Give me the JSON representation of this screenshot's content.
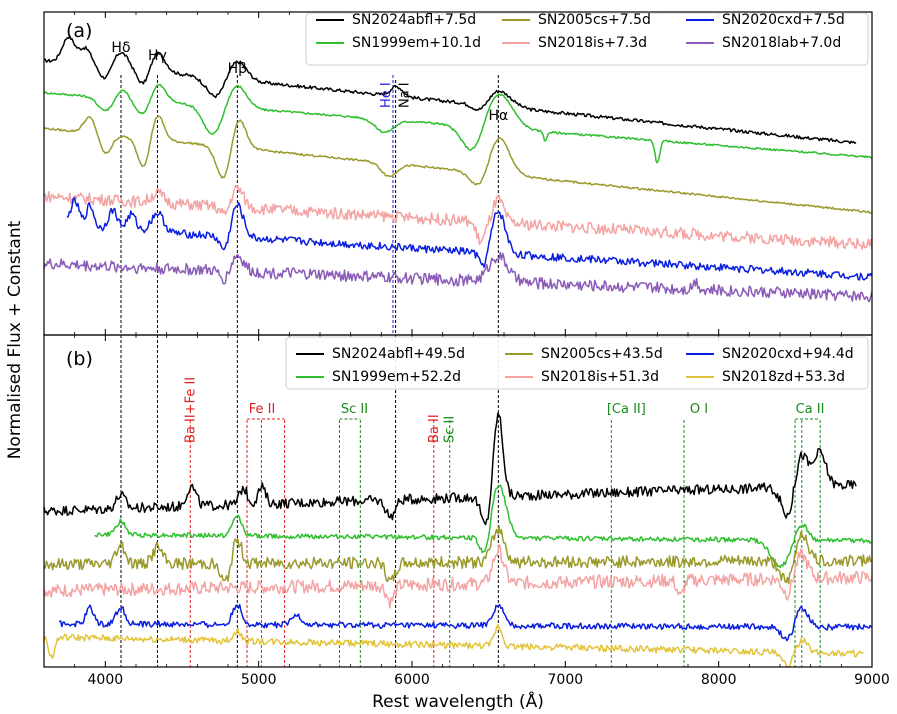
{
  "chart_data": {
    "type": "line",
    "xlabel": "Rest wavelength (Å)",
    "ylabel": "Normalised Flux + Constant",
    "xlim": [
      3600,
      9000
    ],
    "x_ticks": [
      4000,
      5000,
      6000,
      7000,
      8000,
      9000
    ],
    "x_tick_labels": [
      "4000",
      "5000",
      "6000",
      "7000",
      "8000",
      "9000"
    ],
    "panels": [
      {
        "label": "(a)",
        "ylim": [
          0,
          10
        ],
        "series": [
          {
            "name": "SN2024abfl+7.5d",
            "color": "#000000",
            "x_range": [
              3600,
              8900
            ],
            "level": 8.5,
            "slope": -2.6,
            "noise": 0.05,
            "features": [
              [
                3760,
                0.8,
                40
              ],
              [
                3870,
                0.5,
                40
              ],
              [
                4100,
                0.5,
                50
              ],
              [
                4340,
                0.6,
                50
              ],
              [
                4860,
                0.6,
                60
              ],
              [
                5900,
                0.3,
                40
              ],
              [
                6563,
                0.5,
                80
              ],
              [
                4000,
                -0.4,
                40
              ],
              [
                4250,
                -0.5,
                40
              ],
              [
                4720,
                -0.6,
                60
              ],
              [
                6450,
                -0.3,
                50
              ]
            ]
          },
          {
            "name": "SN1999em+10.1d",
            "color": "#2fbf2f",
            "x_range": [
              3600,
              9000
            ],
            "level": 7.5,
            "slope": -2.0,
            "noise": 0.03,
            "features": [
              [
                4110,
                0.3,
                40
              ],
              [
                4340,
                0.6,
                50
              ],
              [
                4860,
                0.7,
                60
              ],
              [
                6563,
                1.1,
                90
              ],
              [
                4000,
                -0.4,
                50
              ],
              [
                4250,
                -0.5,
                50
              ],
              [
                4700,
                -0.9,
                60
              ],
              [
                5820,
                -0.4,
                60
              ],
              [
                6400,
                -0.9,
                70
              ],
              [
                7600,
                -0.7,
                15
              ],
              [
                6870,
                -0.3,
                10
              ]
            ]
          },
          {
            "name": "SN2005cs+7.5d",
            "color": "#9a9a2c",
            "x_range": [
              3600,
              9000
            ],
            "level": 6.4,
            "slope": -2.6,
            "noise": 0.03,
            "features": [
              [
                3900,
                0.5,
                40
              ],
              [
                4340,
                0.8,
                40
              ],
              [
                4860,
                1.1,
                50
              ],
              [
                6563,
                1.2,
                70
              ],
              [
                4000,
                -0.6,
                40
              ],
              [
                4250,
                -0.9,
                40
              ],
              [
                4780,
                -1.2,
                50
              ],
              [
                5850,
                -0.4,
                50
              ],
              [
                6450,
                -0.6,
                60
              ]
            ]
          },
          {
            "name": "SN2018is+7.3d",
            "color": "#f4a3a3",
            "x_range": [
              3600,
              9000
            ],
            "level": 4.3,
            "slope": -1.5,
            "noise": 0.18,
            "features": [
              [
                4340,
                0.3,
                40
              ],
              [
                4860,
                0.6,
                40
              ],
              [
                6563,
                0.7,
                35
              ],
              [
                6450,
                -0.6,
                30
              ],
              [
                4780,
                -0.3,
                30
              ]
            ]
          },
          {
            "name": "SN2020cxd+7.5d",
            "color": "#0a1ee0",
            "x_range": [
              3750,
              9000
            ],
            "level": 3.4,
            "slope": -1.6,
            "noise": 0.12,
            "features": [
              [
                3800,
                0.8,
                30
              ],
              [
                3900,
                0.7,
                25
              ],
              [
                4050,
                0.6,
                30
              ],
              [
                4170,
                0.5,
                30
              ],
              [
                4340,
                0.6,
                40
              ],
              [
                4860,
                1.0,
                40
              ],
              [
                6563,
                1.3,
                45
              ],
              [
                4780,
                -0.5,
                30
              ],
              [
                6470,
                -0.5,
                30
              ]
            ]
          },
          {
            "name": "SN2018lab+7.0d",
            "color": "#8a5cb8",
            "x_range": [
              3600,
              9000
            ],
            "level": 2.2,
            "slope": -1.0,
            "noise": 0.18,
            "features": [
              [
                4860,
                0.5,
                40
              ],
              [
                6563,
                0.8,
                60
              ],
              [
                4780,
                -0.3,
                30
              ],
              [
                7850,
                0.25,
                20
              ]
            ]
          }
        ],
        "line_markers": [
          {
            "label": "Hδ",
            "x": 4102,
            "color": "#000000",
            "style": "dashed"
          },
          {
            "label": "Hγ",
            "x": 4340,
            "color": "#000000",
            "style": "dashed"
          },
          {
            "label": "Hβ",
            "x": 4861,
            "color": "#000000",
            "style": "dashed"
          },
          {
            "label": "He I",
            "x": 5876,
            "color": "#1a1ae6",
            "style": "dashed"
          },
          {
            "label": "Na I",
            "x": 5893,
            "color": "#000000",
            "style": "dashed"
          },
          {
            "label": "Hα",
            "x": 6563,
            "color": "#000000",
            "style": "dashed"
          }
        ],
        "legend": {
          "position": "top-right",
          "columns": 3
        }
      },
      {
        "label": "(b)",
        "ylim": [
          0,
          10
        ],
        "series": [
          {
            "name": "SN2024abfl+49.5d",
            "color": "#000000",
            "x_range": [
              3600,
              8900
            ],
            "level": 4.7,
            "slope": 0.8,
            "noise": 0.15,
            "features": [
              [
                4100,
                0.4,
                30
              ],
              [
                4560,
                0.6,
                30
              ],
              [
                6563,
                2.5,
                30
              ],
              [
                8540,
                1.0,
                40
              ],
              [
                8660,
                1.0,
                40
              ],
              [
                8450,
                -0.9,
                40
              ],
              [
                5860,
                -0.5,
                30
              ],
              [
                6480,
                -0.9,
                30
              ],
              [
                4900,
                0.5,
                25
              ],
              [
                5020,
                0.5,
                25
              ]
            ]
          },
          {
            "name": "SN1999em+52.2d",
            "color": "#2fbf2f",
            "x_range": [
              3930,
              9000
            ],
            "level": 4.0,
            "slope": -0.2,
            "noise": 0.07,
            "features": [
              [
                6563,
                1.6,
                50
              ],
              [
                4860,
                0.6,
                30
              ],
              [
                8540,
                0.5,
                40
              ],
              [
                8400,
                -0.8,
                60
              ],
              [
                6480,
                -0.8,
                30
              ],
              [
                4100,
                0.4,
                30
              ]
            ]
          },
          {
            "name": "SN2005cs+43.5d",
            "color": "#9a9a2c",
            "x_range": [
              3600,
              9000
            ],
            "level": 3.1,
            "slope": 0.1,
            "noise": 0.18,
            "features": [
              [
                4100,
                0.6,
                30
              ],
              [
                4340,
                0.5,
                30
              ],
              [
                4860,
                0.7,
                30
              ],
              [
                6563,
                1.0,
                40
              ],
              [
                8540,
                0.9,
                40
              ],
              [
                8450,
                -0.7,
                40
              ],
              [
                4780,
                -0.6,
                30
              ],
              [
                5860,
                -0.6,
                30
              ]
            ]
          },
          {
            "name": "SN2018is+51.3d",
            "color": "#f4a3a3",
            "x_range": [
              3600,
              9000
            ],
            "level": 2.3,
            "slope": 0.4,
            "noise": 0.2,
            "features": [
              [
                6563,
                1.0,
                35
              ],
              [
                8540,
                0.7,
                40
              ],
              [
                8450,
                -0.5,
                30
              ],
              [
                7750,
                -0.5,
                20
              ],
              [
                5860,
                -0.5,
                25
              ]
            ]
          },
          {
            "name": "SN2020cxd+94.4d",
            "color": "#0a1ee0",
            "x_range": [
              3700,
              9000
            ],
            "level": 1.3,
            "slope": -0.1,
            "noise": 0.09,
            "features": [
              [
                3900,
                0.5,
                25
              ],
              [
                4100,
                0.5,
                30
              ],
              [
                4860,
                0.6,
                30
              ],
              [
                6563,
                0.6,
                35
              ],
              [
                8540,
                0.6,
                40
              ],
              [
                8450,
                -0.4,
                40
              ],
              [
                5250,
                0.3,
                30
              ]
            ]
          },
          {
            "name": "SN2018zd+53.3d",
            "color": "#e2c33a",
            "x_range": [
              3600,
              8950
            ],
            "level": 0.9,
            "slope": -0.5,
            "noise": 0.1,
            "features": [
              [
                3650,
                -0.6,
                20
              ],
              [
                4860,
                0.3,
                25
              ],
              [
                6563,
                0.6,
                25
              ],
              [
                8540,
                0.4,
                35
              ],
              [
                8450,
                -0.4,
                40
              ]
            ]
          }
        ],
        "line_markers": [
          {
            "label": "Ba II+Fe II",
            "x": 4554,
            "color": "#e02020",
            "style": "dashed"
          },
          {
            "label": "Fe II",
            "x": 4924,
            "color": "#e02020",
            "style": "dashed"
          },
          {
            "label": "",
            "x": 5018,
            "color": "#e02020",
            "style": "dashed"
          },
          {
            "label": "",
            "x": 5169,
            "color": "#e02020",
            "style": "dashed"
          },
          {
            "label": "Sc II",
            "x": 5527,
            "color": "#1a8a1a",
            "style": "dashed"
          },
          {
            "label": "",
            "x": 5663,
            "color": "#1a8a1a",
            "style": "dashed"
          },
          {
            "label": "Ba II",
            "x": 6142,
            "color": "#e02020",
            "style": "dashed"
          },
          {
            "label": "Sc II",
            "x": 6246,
            "color": "#1a8a1a",
            "style": "dashed"
          },
          {
            "label": "[Ca II]",
            "x": 7300,
            "color": "#1a8a1a",
            "style": "dashed"
          },
          {
            "label": "O I",
            "x": 7774,
            "color": "#1a8a1a",
            "style": "dashed"
          },
          {
            "label": "Ca II",
            "x": 8498,
            "color": "#1a8a1a",
            "style": "dashed"
          },
          {
            "label": "",
            "x": 8542,
            "color": "#1a8a1a",
            "style": "dashed"
          },
          {
            "label": "",
            "x": 8662,
            "color": "#1a8a1a",
            "style": "dashed"
          }
        ],
        "line_groups": [
          {
            "from": 4924,
            "to": 5169,
            "color": "#e02020"
          },
          {
            "from": 5527,
            "to": 5663,
            "color": "#1a8a1a"
          },
          {
            "from": 8498,
            "to": 8662,
            "color": "#1a8a1a"
          }
        ],
        "legend": {
          "position": "top-right",
          "columns": 3
        }
      }
    ],
    "shared_markers": [
      4102,
      4340,
      4861,
      5893,
      6563
    ]
  }
}
